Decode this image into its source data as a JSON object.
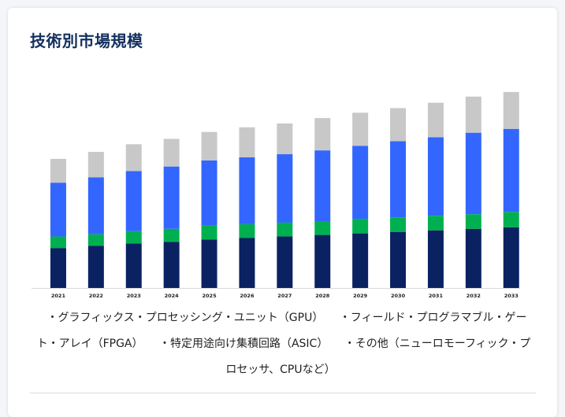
{
  "title": "技術別市場規模",
  "legend": [
    "・グラフィックス・プロセッシング・ユニット（GPU）",
    "・フィールド・プログラマブル・ゲート・アレイ（FPGA）",
    "・特定用途向け集積回路（ASIC）",
    "・その他（ニューロモーフィック・プロセッサ、CPUなど）"
  ],
  "chart_data": {
    "type": "bar",
    "stacked": true,
    "title": "技術別市場規模",
    "categories": [
      "2021",
      "2022",
      "2023",
      "2024",
      "2025",
      "2026",
      "2027",
      "2028",
      "2029",
      "2030",
      "2031",
      "2032",
      "2033"
    ],
    "series": [
      {
        "name": "・特定用途向け集積回路（ASIC）",
        "color": "#0a2262",
        "values": [
          52,
          55,
          58,
          60,
          63,
          65,
          67,
          69,
          71,
          73,
          75,
          77,
          79
        ]
      },
      {
        "name": "・フィールド・プログラマブル・ゲート・アレイ（FPGA）",
        "color": "#00b050",
        "values": [
          15,
          15,
          16,
          17,
          18,
          18,
          18,
          18,
          19,
          19,
          19,
          19,
          20
        ]
      },
      {
        "name": "・グラフィックス・プロセッシング・ユニット（GPU）",
        "color": "#3366ff",
        "values": [
          70,
          74,
          78,
          81,
          85,
          87,
          89,
          92,
          95,
          99,
          102,
          106,
          108
        ]
      },
      {
        "name": "・その他（ニューロモーフィック・プロセッサ、CPUなど）",
        "color": "#c8c8c8",
        "values": [
          31,
          33,
          35,
          36,
          37,
          39,
          40,
          42,
          43,
          43,
          45,
          47,
          48
        ]
      }
    ],
    "ylim": [
      0,
      260
    ],
    "grid": false,
    "legend_position": "bottom"
  }
}
